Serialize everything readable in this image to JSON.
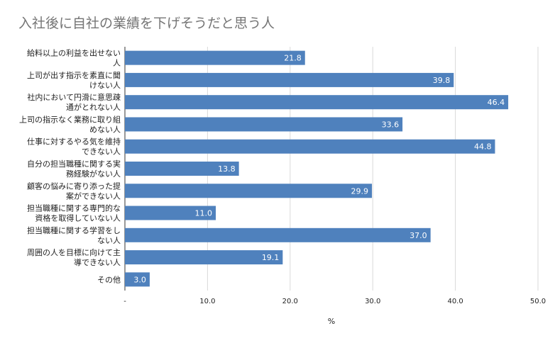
{
  "chart_data": {
    "type": "bar",
    "orientation": "horizontal",
    "title": "入社後に自社の業績を下げそうだと思う人",
    "xlabel": "%",
    "ylabel": "",
    "xlim": [
      0,
      50
    ],
    "x_ticks": [
      "-",
      "10.0",
      "20.0",
      "30.0",
      "40.0",
      "50.0"
    ],
    "grid": "vertical",
    "legend": "none",
    "bar_color": "#4f81bd",
    "categories": [
      [
        "給料以上の利益を出せない",
        "人"
      ],
      [
        "上司が出す指示を素直に聞",
        "けない人"
      ],
      [
        "社内において円滑に意思疎",
        "通がとれない人"
      ],
      [
        "上司の指示なく業務に取り組",
        "めない人"
      ],
      [
        "仕事に対するやる気を維持",
        "できない人"
      ],
      [
        "自分の担当職種に関する実",
        "務経験がない人"
      ],
      [
        "顧客の悩みに寄り添った提",
        "案ができない人"
      ],
      [
        "担当職種に関する専門的な",
        "資格を取得していない人"
      ],
      [
        "担当職種に関する学習をし",
        "ない人"
      ],
      [
        "周囲の人を目標に向けて主",
        "導できない人"
      ],
      [
        "その他"
      ]
    ],
    "values": [
      21.8,
      39.8,
      46.4,
      33.6,
      44.8,
      13.8,
      29.9,
      11.0,
      37.0,
      19.1,
      3.0
    ],
    "value_labels": [
      "21.8",
      "39.8",
      "46.4",
      "33.6",
      "44.8",
      "13.8",
      "29.9",
      "11.0",
      "37.0",
      "19.1",
      "3.0"
    ]
  }
}
